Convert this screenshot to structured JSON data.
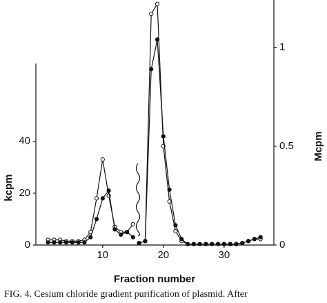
{
  "chart_data": {
    "type": "line",
    "xlabel": "Fraction number",
    "ylabel": "kcpm",
    "y2label": "Mcpm",
    "caption": "FIG. 4. Cesium chloride gradient purification of plasmid. After",
    "xlim": [
      -1,
      38.2
    ],
    "xticks": [
      10,
      20,
      30
    ],
    "ylim": [
      0,
      70
    ],
    "yticks": [
      0,
      20,
      40
    ],
    "y2lim": [
      0,
      1.24
    ],
    "y2ticks": [
      0,
      0.5,
      1
    ],
    "series": [
      {
        "marker": "open",
        "color": "#111111",
        "x": [
          1,
          2,
          3,
          4,
          5,
          6,
          7,
          8,
          9,
          10,
          11,
          12,
          13,
          14,
          15
        ],
        "values": [
          2,
          2,
          2,
          1.5,
          1.5,
          1.5,
          2,
          5,
          18,
          33,
          19,
          7,
          5,
          5,
          8
        ]
      },
      {
        "marker": "filled",
        "color": "#111111",
        "x": [
          1,
          2,
          3,
          4,
          5,
          6,
          7,
          8,
          9,
          10,
          11,
          12,
          13,
          14,
          15
        ],
        "values": [
          1,
          1,
          1,
          1,
          1,
          1,
          1,
          3,
          10,
          18,
          21,
          6,
          4,
          5,
          3
        ]
      },
      {
        "marker": "open",
        "color": "#111111",
        "axis": "y2",
        "x": [
          16,
          17,
          18,
          19,
          20,
          21,
          22,
          23,
          24,
          25,
          26,
          27,
          28,
          29,
          30,
          31,
          32,
          33,
          34,
          35,
          36
        ],
        "values": [
          0.01,
          0.02,
          1.17,
          1.22,
          0.5,
          0.22,
          0.07,
          0.02,
          0.005,
          0.005,
          0.005,
          0.005,
          0.005,
          0.005,
          0.005,
          0.005,
          0.005,
          0.01,
          0.02,
          0.03,
          0.03
        ]
      },
      {
        "marker": "filled",
        "color": "#111111",
        "axis": "y2",
        "x": [
          16,
          17,
          18,
          19,
          20,
          21,
          22,
          23,
          24,
          25,
          26,
          27,
          28,
          29,
          30,
          31,
          32,
          33,
          34,
          35,
          36
        ],
        "values": [
          0.01,
          0.02,
          0.89,
          1.04,
          0.55,
          0.28,
          0.1,
          0.03,
          0.005,
          0.005,
          0.005,
          0.005,
          0.005,
          0.005,
          0.005,
          0.005,
          0.005,
          0.01,
          0.02,
          0.03,
          0.04
        ]
      }
    ]
  }
}
